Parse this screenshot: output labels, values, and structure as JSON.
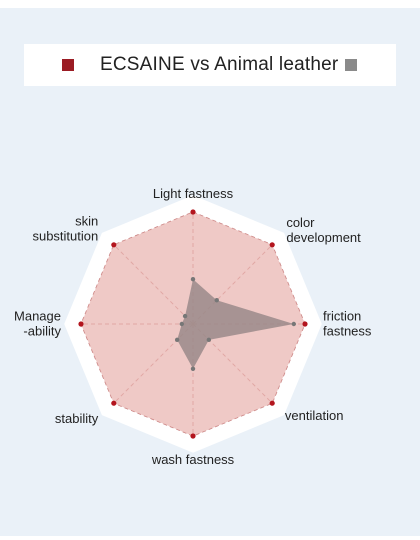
{
  "legend": {
    "series_a_label": "ECSAINE",
    "vs_label": "vs",
    "series_b_label": "Animal leather",
    "series_a_color": "#9b1c24",
    "series_b_color": "#8a8a8a"
  },
  "chart_data": {
    "type": "radar",
    "title": "",
    "axes": [
      {
        "label_lines": [
          "Light fastness"
        ]
      },
      {
        "label_lines": [
          "color",
          "development"
        ]
      },
      {
        "label_lines": [
          "friction",
          "fastness"
        ]
      },
      {
        "label_lines": [
          "ventilation"
        ]
      },
      {
        "label_lines": [
          "wash fastness"
        ]
      },
      {
        "label_lines": [
          "stability"
        ]
      },
      {
        "label_lines": [
          "Manage",
          "-ability"
        ]
      },
      {
        "label_lines": [
          "skin",
          "substitution"
        ]
      }
    ],
    "max": 5,
    "series": [
      {
        "name": "ECSAINE",
        "values": [
          5,
          5,
          5,
          5,
          5,
          5,
          5,
          5
        ],
        "fill": "#e9b7b3",
        "point_color": "#b3151e"
      },
      {
        "name": "Animal leather",
        "values": [
          2,
          1.5,
          4.5,
          1,
          2,
          1,
          0.5,
          0.5
        ],
        "fill": "#9a8a8a",
        "point_color": "#777777"
      }
    ],
    "grid": true
  }
}
